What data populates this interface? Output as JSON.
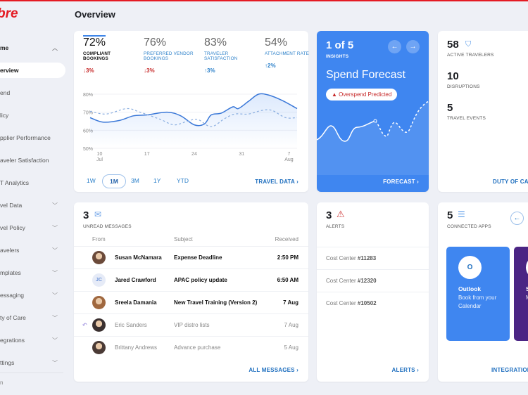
{
  "brand": {
    "logo": "bre",
    "accent": "#e41b23"
  },
  "page_title": "Overview",
  "sidebar": {
    "items": [
      {
        "label": "me",
        "chevron": "up"
      },
      {
        "label": "erview",
        "active": true
      },
      {
        "label": "end"
      },
      {
        "label": "licy"
      },
      {
        "label": "pplier Performance"
      },
      {
        "label": "aveler Satisfaction"
      },
      {
        "label": "T Analytics"
      },
      {
        "label": "vel Data",
        "chevron": "down"
      },
      {
        "label": "vel Policy",
        "chevron": "down"
      },
      {
        "label": "avelers",
        "chevron": "down"
      },
      {
        "label": "mplates",
        "chevron": "down"
      },
      {
        "label": "essaging",
        "chevron": "down"
      },
      {
        "label": "ty of Care",
        "chevron": "down"
      },
      {
        "label": "egrations",
        "chevron": "down"
      },
      {
        "label": "ttings",
        "chevron": "down"
      }
    ],
    "footer": "n"
  },
  "kpis": [
    {
      "value": "72%",
      "label": "COMPLIANT BOOKINGS",
      "delta": "↓3%",
      "dir": "down"
    },
    {
      "value": "76%",
      "label": "PREFERRED VENDOR BOOKINGS",
      "delta": "↓3%",
      "dir": "down"
    },
    {
      "value": "83%",
      "label": "TRAVELER SATISFACTION",
      "delta": "↑3%",
      "dir": "up"
    },
    {
      "value": "54%",
      "label": "ATTACHMENT RATE",
      "delta": "↑2%",
      "dir": "up"
    }
  ],
  "chart_data": {
    "type": "line",
    "ylim": [
      50,
      80
    ],
    "xlim": [
      8.6,
      39.2
    ],
    "yticks": [
      "80%",
      "70%",
      "60%",
      "50%"
    ],
    "ytick_values": [
      80,
      70,
      60,
      50
    ],
    "xticks": [
      {
        "day": 10,
        "label": "10",
        "sub": "Jul"
      },
      {
        "day": 17,
        "label": "17",
        "sub": ""
      },
      {
        "day": 24,
        "label": "24",
        "sub": ""
      },
      {
        "day": 31,
        "label": "31",
        "sub": ""
      },
      {
        "day": 38,
        "label": "7",
        "sub": "Aug"
      }
    ],
    "series": [
      {
        "name": "current",
        "style": "solid",
        "x": [
          8.6,
          10.5,
          13,
          15,
          17,
          20,
          22,
          24,
          25.5,
          26.5,
          28,
          29.7,
          30.5,
          32,
          33.5,
          35,
          37,
          39.2
        ],
        "y": [
          67,
          64.5,
          65.5,
          68,
          68.5,
          70,
          68,
          63,
          63.5,
          68.5,
          69.5,
          73,
          72,
          76,
          80,
          79.5,
          76.5,
          72
        ]
      },
      {
        "name": "previous",
        "style": "dashed",
        "x": [
          8.6,
          11,
          14,
          16,
          19,
          21,
          23,
          24.5,
          26.5,
          28.5,
          30,
          32,
          34,
          35.5,
          37.5,
          39.2
        ],
        "y": [
          70.5,
          69,
          72,
          70,
          66,
          63,
          65,
          66,
          62,
          66.5,
          69,
          69,
          71,
          71,
          67,
          67
        ]
      }
    ]
  },
  "ranges": [
    "1W",
    "1M",
    "3M",
    "1Y",
    "YTD"
  ],
  "travel_data_link": "TRAVEL DATA",
  "insights": {
    "counter": "1 of 5",
    "caption": "INSIGHTS",
    "title": "Spend Forecast",
    "badge": "Overspend Predicted",
    "link": "FORECAST",
    "color": "#3f86f0"
  },
  "duty": {
    "stats": [
      {
        "value": "58",
        "label": "ACTIVE TRAVELERS"
      },
      {
        "value": "10",
        "label": "DISRUPTIONS"
      },
      {
        "value": "5",
        "label": "TRAVEL EVENTS"
      }
    ],
    "link": "DUTY OF CAR"
  },
  "messages": {
    "count": "3",
    "caption": "UNREAD MESSAGES",
    "headers": {
      "from": "From",
      "subject": "Subject",
      "received": "Received"
    },
    "rows": [
      {
        "from": "Susan McNamara",
        "subject": "Expense Deadline",
        "time": "2:50 PM",
        "unread": true,
        "avatar": "#6b4a3a"
      },
      {
        "from": "Jared Crawford",
        "subject": "APAC policy update",
        "time": "6:50 AM",
        "unread": true,
        "initials": "JC"
      },
      {
        "from": "Sreela Damania",
        "subject": "New Travel Training (Version 2)",
        "time": "7 Aug",
        "unread": true,
        "avatar": "#a0683f"
      },
      {
        "from": "Eric Sanders",
        "subject": "VIP distro lists",
        "time": "7 Aug",
        "unread": false,
        "replied": true,
        "avatar": "#3a3030"
      },
      {
        "from": "Brittany Andrews",
        "subject": "Advance purchase",
        "time": "5 Aug",
        "unread": false,
        "avatar": "#4a3a35"
      }
    ],
    "link": "ALL MESSAGES"
  },
  "alerts": {
    "count": "3",
    "caption": "ALERTS",
    "items": [
      {
        "prefix": "Cost Center ",
        "id": "#11283"
      },
      {
        "prefix": "Cost Center ",
        "id": "#12320"
      },
      {
        "prefix": "Cost Center ",
        "id": "#10502"
      }
    ],
    "link": "ALERTS"
  },
  "apps": {
    "count": "5",
    "caption": "CONNECTED APPS",
    "cards": [
      {
        "name": "Outlook",
        "desc": "Book from your Calendar",
        "color": "#3f86f0"
      },
      {
        "name": "S",
        "desc": "M c",
        "color": "#4b2584"
      }
    ],
    "link": "INTEGRATION"
  }
}
